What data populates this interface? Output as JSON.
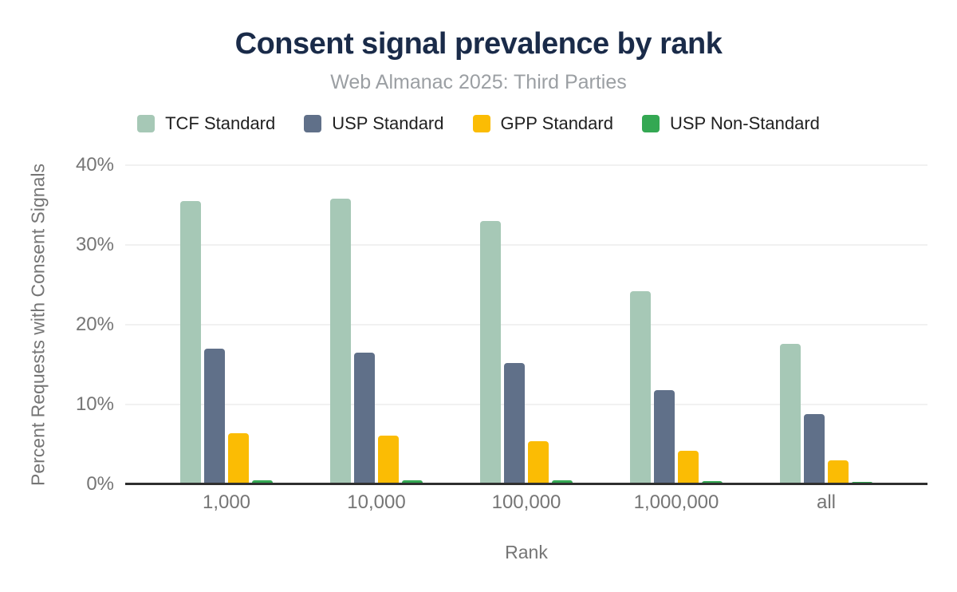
{
  "header": {
    "title": "Consent signal prevalence by rank",
    "subtitle": "Web Almanac 2025: Third Parties"
  },
  "chart_data": {
    "type": "bar",
    "title": "Consent signal prevalence by rank",
    "subtitle": "Web Almanac 2025: Third Parties",
    "categories": [
      "1,000",
      "10,000",
      "100,000",
      "1,000,000",
      "all"
    ],
    "series": [
      {
        "name": "TCF Standard",
        "color": "#a6c8b6",
        "values": [
          35.4,
          35.7,
          32.9,
          24.1,
          17.5
        ]
      },
      {
        "name": "USP Standard",
        "color": "#607089",
        "values": [
          16.9,
          16.4,
          15.1,
          11.7,
          8.7
        ]
      },
      {
        "name": "GPP Standard",
        "color": "#fbbc04",
        "values": [
          6.3,
          6.0,
          5.3,
          4.1,
          2.9
        ]
      },
      {
        "name": "USP Non-Standard",
        "color": "#34a853",
        "values": [
          0.4,
          0.4,
          0.4,
          0.3,
          0.2
        ]
      }
    ],
    "xlabel": "Rank",
    "ylabel": "Percent Requests with Consent Signals",
    "ylim": [
      0,
      40
    ],
    "yticks": [
      0,
      10,
      20,
      30,
      40
    ],
    "ytick_labels": [
      "0%",
      "10%",
      "20%",
      "30%",
      "40%"
    ],
    "grid": true,
    "legend_position": "top",
    "unit": "percent"
  },
  "colors": {
    "title": "#1a2b49",
    "subtitle": "#9b9fa3",
    "axis_text": "#757575",
    "legend_text": "#212121",
    "gridline": "#f1f1f1",
    "axis_line": "#2f2f2f",
    "background": "#ffffff"
  }
}
